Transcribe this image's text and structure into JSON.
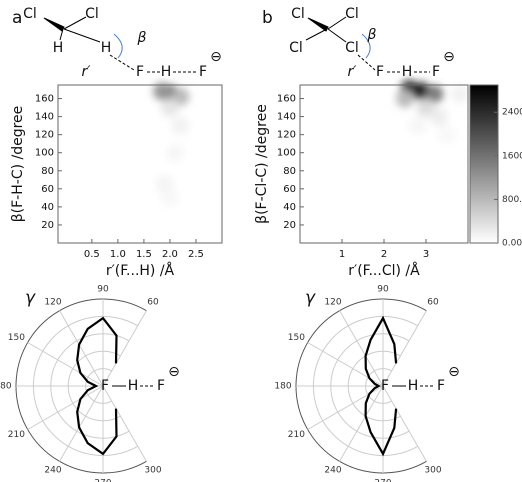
{
  "panels": [
    {
      "label": "a",
      "molecule": [
        "Cl",
        "Cl",
        "H",
        "H",
        "β",
        "r′",
        "F",
        "H",
        "F",
        "⊖"
      ]
    },
    {
      "label": "b",
      "molecule": [
        "Cl",
        "Cl",
        "Cl",
        "Cl",
        "β",
        "r′",
        "F",
        "H",
        "F",
        "⊖"
      ]
    }
  ],
  "chart_data": [
    {
      "type": "heatmap",
      "x_label": "r′(F...H) /Å",
      "y_label": "β(F-H-C) /degree",
      "x": [
        2.0,
        1.85,
        2.2,
        2.0,
        2.2,
        2.1,
        1.9,
        2.0
      ],
      "y": [
        165,
        168,
        162,
        150,
        130,
        100,
        65,
        50
      ],
      "values": [
        2000,
        1200,
        800,
        300,
        150,
        100,
        120,
        80
      ],
      "xlim": [
        -0.15,
        3
      ],
      "ylim": [
        0,
        175
      ],
      "xticks": [
        0.5,
        {
          "value": 1,
          "label": "1.0"
        },
        1.5,
        {
          "value": 2,
          "label": "2.0"
        },
        2.5
      ],
      "yticks": [
        20,
        40,
        60,
        80,
        100,
        120,
        140,
        160
      ],
      "zlim": [
        0,
        2900
      ],
      "colormap": [
        "#ffffff",
        "#000000"
      ]
    },
    {
      "type": "heatmap",
      "x_label": "r′(F...Cl) /Å",
      "y_label": "β(F-Cl-C) /degree",
      "x": [
        2.6,
        2.9,
        3.2,
        2.5,
        3.0,
        3.3,
        2.8,
        3.5,
        3.8
      ],
      "y": [
        170,
        168,
        165,
        160,
        150,
        140,
        130,
        120,
        165
      ],
      "values": [
        2800,
        2600,
        1500,
        800,
        400,
        200,
        100,
        80,
        150
      ],
      "xlim": [
        0,
        4
      ],
      "ylim": [
        0,
        175
      ],
      "xticks": [
        1,
        2,
        3
      ],
      "yticks": [
        20,
        40,
        60,
        80,
        100,
        120,
        140,
        160
      ],
      "zlim": [
        0,
        2900
      ],
      "colormap": [
        "#ffffff",
        "#000000"
      ],
      "zticks": [
        {
          "value": 0,
          "label": "0.000"
        },
        {
          "value": 800,
          "label": "800.0"
        },
        1600,
        2400
      ]
    },
    {
      "type": "polar",
      "annotations": [
        "γ",
        "F",
        "H",
        "F",
        "⊖"
      ],
      "theta": [
        60,
        75,
        90,
        105,
        120,
        135,
        150,
        165,
        180,
        195,
        210,
        225,
        240,
        255,
        270,
        285,
        300
      ],
      "r": [
        0.3,
        0.6,
        0.78,
        0.68,
        0.55,
        0.42,
        0.3,
        0.18,
        0.08,
        0.18,
        0.3,
        0.42,
        0.55,
        0.68,
        0.78,
        0.6,
        0.3
      ],
      "rlim": [
        0,
        1
      ],
      "thetaticks": [
        60,
        90,
        120,
        150,
        180,
        210,
        240,
        270,
        300
      ],
      "color": "#000000"
    },
    {
      "type": "polar",
      "annotations": [
        "γ",
        "F",
        "H",
        "F",
        "⊖"
      ],
      "theta": [
        60,
        75,
        90,
        105,
        120,
        135,
        150,
        165,
        180,
        195,
        210,
        225,
        240,
        255,
        270,
        285,
        300
      ],
      "r": [
        0.3,
        0.5,
        0.78,
        0.55,
        0.4,
        0.28,
        0.18,
        0.1,
        0.05,
        0.1,
        0.18,
        0.28,
        0.4,
        0.55,
        0.78,
        0.5,
        0.3
      ],
      "rlim": [
        0,
        1
      ],
      "thetaticks": [
        60,
        90,
        120,
        150,
        180,
        210,
        240,
        270,
        300
      ],
      "color": "#000000"
    }
  ]
}
